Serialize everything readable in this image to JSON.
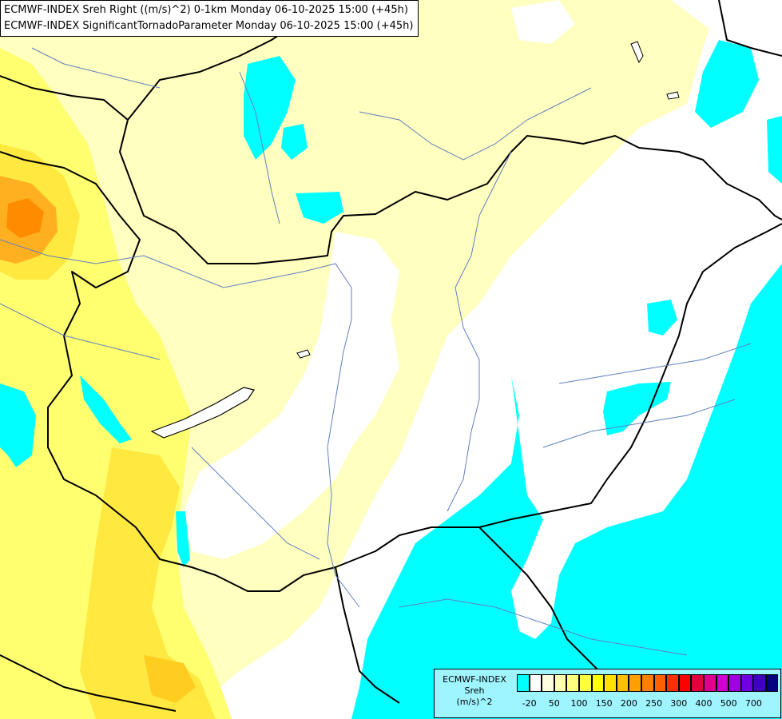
{
  "title": {
    "line1": "ECMWF-INDEX Sreh Right ((m/s)^2) 0-1km Monday 06-10-2025 15:00 (+45h)",
    "line2": "ECMWF-INDEX SignificantTornadoParameter Monday 06-10-2025 15:00 (+45h)"
  },
  "legend": {
    "source": "ECMWF-INDEX",
    "variable": "Sreh",
    "unit": "(m/s)^2",
    "colors": [
      "#00ffff",
      "#ffffff",
      "#fffde0",
      "#ffffb0",
      "#ffff80",
      "#ffff40",
      "#ffff00",
      "#ffe000",
      "#ffc000",
      "#ffa000",
      "#ff8000",
      "#ff6000",
      "#ff3000",
      "#ff0000",
      "#e00040",
      "#e00090",
      "#d000d0",
      "#a000e0",
      "#7000e0",
      "#4000c0",
      "#000080"
    ],
    "ticks": [
      "-20",
      "50",
      "100",
      "150",
      "200",
      "250",
      "300",
      "400",
      "500",
      "700"
    ]
  },
  "colors": {
    "shear_low_cyan": "#00ffff",
    "shear_pale": "#ffffc0",
    "shear_yellow": "#ffff00",
    "shear_orange": "#ff9000",
    "border": "#000000",
    "river": "#6080c0"
  }
}
